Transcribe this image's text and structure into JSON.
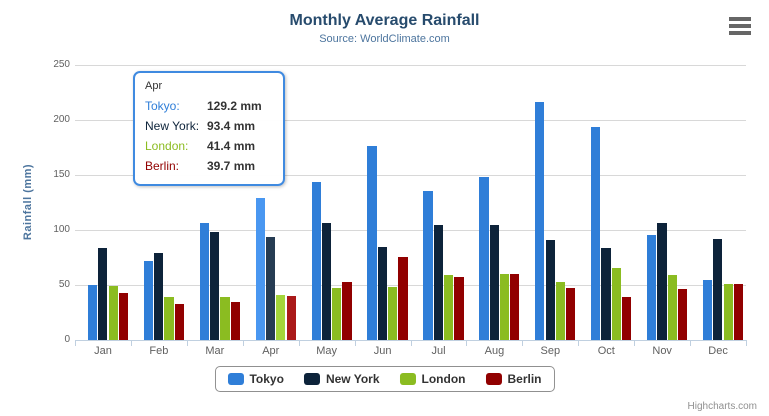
{
  "chart": {
    "title": "Monthly Average Rainfall",
    "subtitle": "Source: WorldClimate.com",
    "y_axis_title": "Rainfall (mm)",
    "credits_label": "Highcharts.com"
  },
  "colors": {
    "title": "#274b6d",
    "subtitle": "#4d759e",
    "axis_title": "#4d759e",
    "axis_labels": "#606060",
    "grid_line": "#d8d8d8",
    "axis_line": "#c0d0e0",
    "tooltip_border": "#3f8ae0",
    "legend_border": "#909090",
    "hamburger_icon": "#666666",
    "credits_text": "#909090"
  },
  "chart_data": {
    "type": "bar",
    "title": "Monthly Average Rainfall",
    "subtitle": "Source: WorldClimate.com",
    "xlabel": "",
    "ylabel": "Rainfall (mm)",
    "ylim": [
      0,
      250
    ],
    "ytick_interval": 50,
    "ytick_labels": [
      "0",
      "50",
      "100",
      "150",
      "200",
      "250"
    ],
    "grid": true,
    "legend_position": "bottom",
    "categories": [
      "Jan",
      "Feb",
      "Mar",
      "Apr",
      "May",
      "Jun",
      "Jul",
      "Aug",
      "Sep",
      "Oct",
      "Nov",
      "Dec"
    ],
    "series": [
      {
        "name": "Tokyo",
        "color": "#2f7ed8",
        "hover_color": "#4997f1",
        "values": [
          49.9,
          71.5,
          106.4,
          129.2,
          144.0,
          176.0,
          135.6,
          148.5,
          216.4,
          194.1,
          95.6,
          54.4
        ]
      },
      {
        "name": "New York",
        "color": "#0d233a",
        "hover_color": "#263c53",
        "values": [
          83.6,
          78.8,
          98.5,
          93.4,
          106.0,
          84.5,
          105.0,
          104.3,
          91.2,
          83.5,
          106.6,
          92.3
        ]
      },
      {
        "name": "London",
        "color": "#8bbc21",
        "hover_color": "#a4d53a",
        "values": [
          48.9,
          38.8,
          39.3,
          41.4,
          47.0,
          48.3,
          59.0,
          59.6,
          52.4,
          65.2,
          59.3,
          51.2
        ]
      },
      {
        "name": "Berlin",
        "color": "#910000",
        "hover_color": "#aa1919",
        "values": [
          42.4,
          33.2,
          34.5,
          39.7,
          52.6,
          75.5,
          57.4,
          60.4,
          47.6,
          39.1,
          46.8,
          51.1
        ]
      }
    ],
    "hovered_category": "Apr"
  },
  "tooltip": {
    "header": "Apr",
    "rows": [
      {
        "label": "Tokyo:",
        "value": "129.2 mm",
        "color": "#2f7ed8"
      },
      {
        "label": "New York:",
        "value": "93.4 mm",
        "color": "#0d233a"
      },
      {
        "label": "London:",
        "value": "41.4 mm",
        "color": "#8bbc21"
      },
      {
        "label": "Berlin:",
        "value": "39.7 mm",
        "color": "#910000"
      }
    ]
  },
  "legend": {
    "items": [
      {
        "label": "Tokyo",
        "color": "#2f7ed8"
      },
      {
        "label": "New York",
        "color": "#0d233a"
      },
      {
        "label": "London",
        "color": "#8bbc21"
      },
      {
        "label": "Berlin",
        "color": "#910000"
      }
    ]
  }
}
